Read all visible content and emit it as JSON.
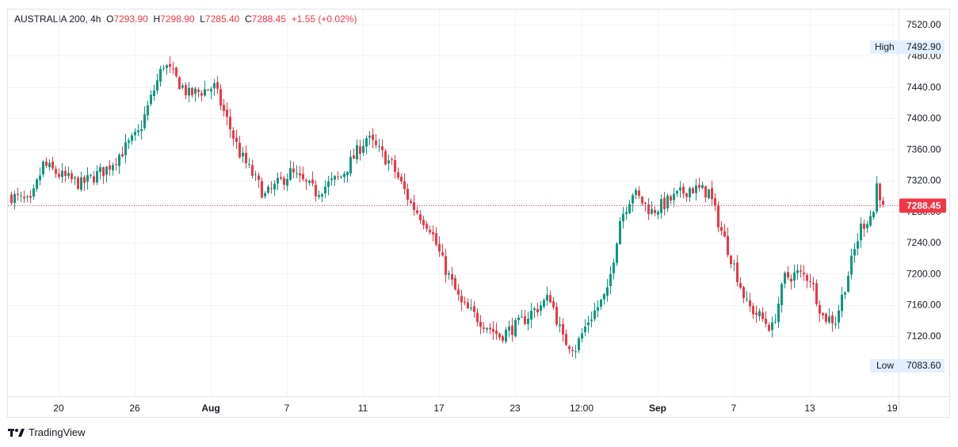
{
  "legend": {
    "symbol": "AUSTRALIA 200",
    "interval": "4h",
    "open_label": "O",
    "open": "7293.90",
    "high_label": "H",
    "high": "7298.90",
    "low_label": "L",
    "low": "7285.40",
    "close_label": "C",
    "close": "7288.45",
    "change": "+1.55 (+0.02%)"
  },
  "brand": {
    "name": "TradingView",
    "logo": "tradingview-logo-icon"
  },
  "colors": {
    "up": "#089981",
    "down": "#f23645",
    "grid": "#f0f3fa",
    "last_price_bg": "#f23645",
    "marker_bg": "#e3effd"
  },
  "chart_data": {
    "type": "candlestick",
    "y_ticks": [
      "7520.00",
      "7480.00",
      "7440.00",
      "7400.00",
      "7360.00",
      "7320.00",
      "7280.00",
      "7240.00",
      "7200.00",
      "7160.00",
      "7120.00"
    ],
    "ylim": [
      7070,
      7535
    ],
    "x_ticks": [
      {
        "label": "20",
        "bar": 15,
        "bold": false
      },
      {
        "label": "26",
        "bar": 39,
        "bold": false
      },
      {
        "label": "Aug",
        "bar": 63,
        "bold": true
      },
      {
        "label": "7",
        "bar": 87,
        "bold": false
      },
      {
        "label": "11",
        "bar": 111,
        "bold": false
      },
      {
        "label": "17",
        "bar": 135,
        "bold": false
      },
      {
        "label": "23",
        "bar": 159,
        "bold": false
      },
      {
        "label": "12:00",
        "bar": 180,
        "bold": false
      },
      {
        "label": "Sep",
        "bar": 204,
        "bold": true
      },
      {
        "label": "7",
        "bar": 228,
        "bold": false
      },
      {
        "label": "13",
        "bar": 252,
        "bold": false
      },
      {
        "label": "19",
        "bar": 278,
        "bold": false
      }
    ],
    "high_marker": {
      "label": "High",
      "value": "7492.90"
    },
    "low_marker": {
      "label": "Low",
      "value": "7083.60"
    },
    "last_price": "7288.45",
    "anchors": [
      [
        0,
        7300
      ],
      [
        6,
        7290
      ],
      [
        10,
        7340
      ],
      [
        16,
        7325
      ],
      [
        22,
        7315
      ],
      [
        30,
        7335
      ],
      [
        40,
        7380
      ],
      [
        48,
        7470
      ],
      [
        56,
        7430
      ],
      [
        64,
        7440
      ],
      [
        72,
        7355
      ],
      [
        80,
        7300
      ],
      [
        88,
        7330
      ],
      [
        96,
        7305
      ],
      [
        104,
        7325
      ],
      [
        112,
        7375
      ],
      [
        120,
        7340
      ],
      [
        126,
        7290
      ],
      [
        132,
        7260
      ],
      [
        136,
        7215
      ],
      [
        142,
        7160
      ],
      [
        148,
        7140
      ],
      [
        154,
        7120
      ],
      [
        160,
        7135
      ],
      [
        164,
        7150
      ],
      [
        170,
        7170
      ],
      [
        174,
        7115
      ],
      [
        178,
        7105
      ],
      [
        182,
        7140
      ],
      [
        188,
        7175
      ],
      [
        192,
        7270
      ],
      [
        196,
        7305
      ],
      [
        202,
        7280
      ],
      [
        206,
        7290
      ],
      [
        210,
        7300
      ],
      [
        214,
        7310
      ],
      [
        220,
        7305
      ],
      [
        224,
        7255
      ],
      [
        228,
        7210
      ],
      [
        232,
        7160
      ],
      [
        236,
        7145
      ],
      [
        240,
        7130
      ],
      [
        244,
        7195
      ],
      [
        248,
        7200
      ],
      [
        252,
        7195
      ],
      [
        256,
        7145
      ],
      [
        260,
        7140
      ],
      [
        264,
        7200
      ],
      [
        268,
        7260
      ],
      [
        272,
        7280
      ],
      [
        273,
        7315
      ],
      [
        275,
        7290
      ]
    ]
  }
}
